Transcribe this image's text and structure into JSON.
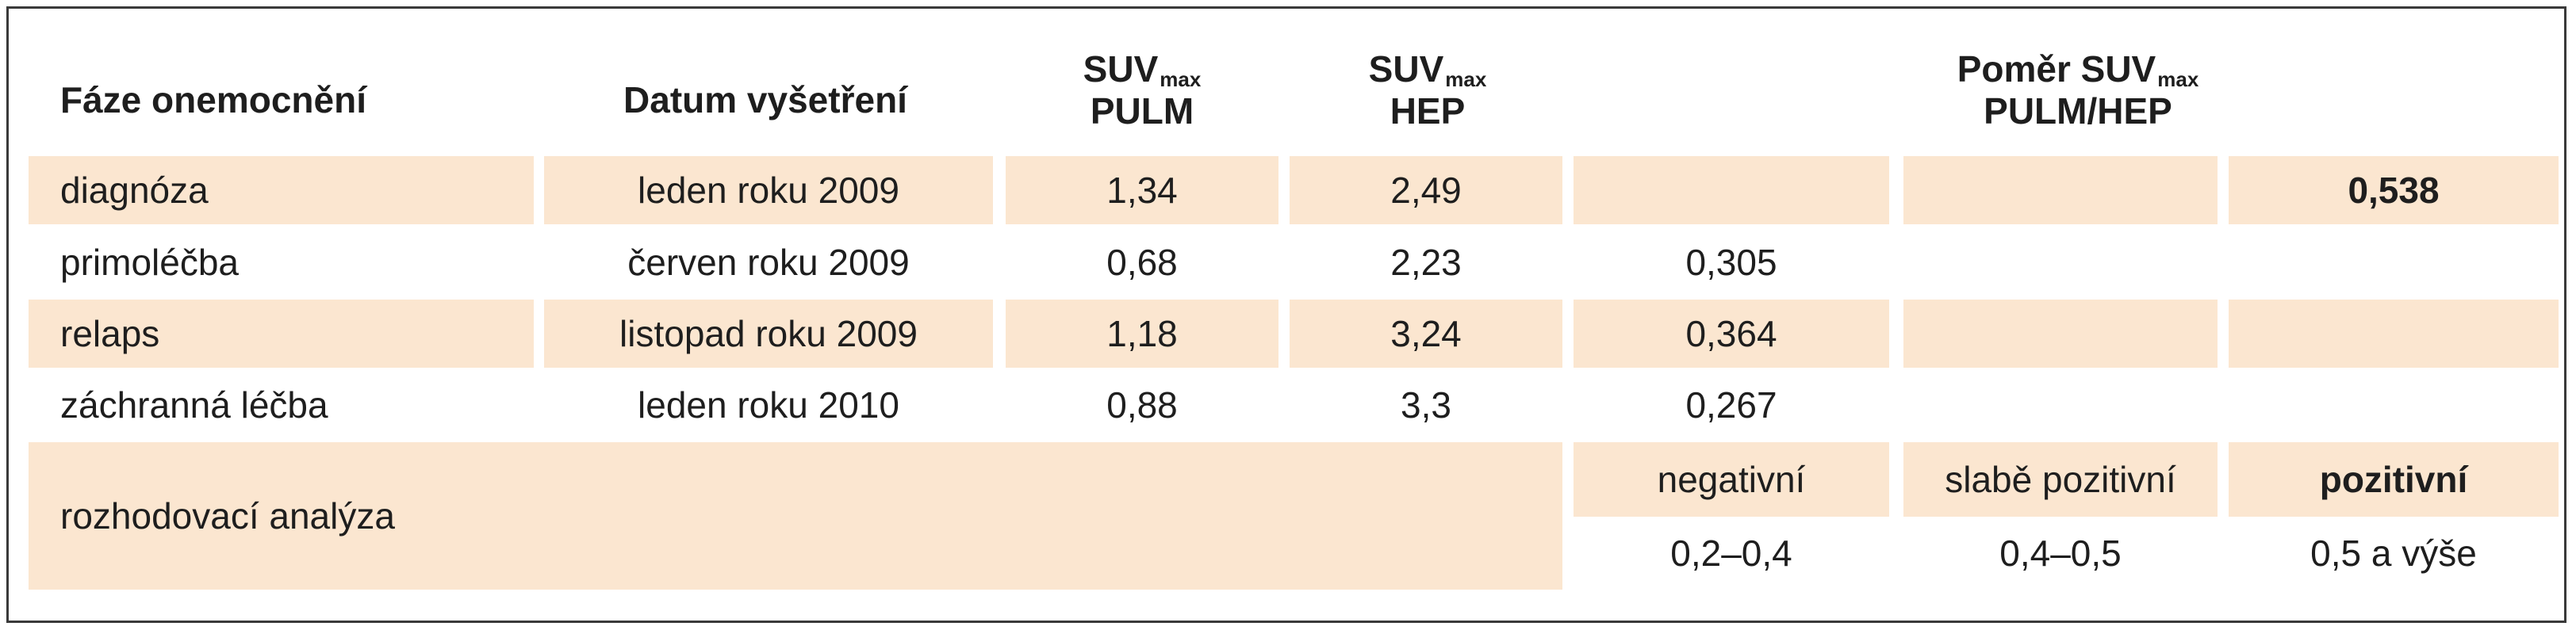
{
  "header": {
    "phase": "Fáze onemocnění",
    "date": "Datum vyšetření",
    "suv_pulm_main": "SUV",
    "suv_pulm_sub": "max",
    "suv_pulm_line2": "PULM",
    "suv_hep_main": "SUV",
    "suv_hep_sub": "max",
    "suv_hep_line2": "HEP",
    "ratio_main": "Poměr SUV",
    "ratio_sub": "max",
    "ratio_line2": "PULM/HEP"
  },
  "rows": [
    {
      "phase": "diagnóza",
      "date": "leden roku 2009",
      "pulm": "1,34",
      "hep": "2,49",
      "ratio_neg": "",
      "ratio_weak": "",
      "ratio_pos": "0,538"
    },
    {
      "phase": "primoléčba",
      "date": "červen roku 2009",
      "pulm": "0,68",
      "hep": "2,23",
      "ratio_neg": "0,305",
      "ratio_weak": "",
      "ratio_pos": ""
    },
    {
      "phase": "relaps",
      "date": "listopad roku 2009",
      "pulm": "1,18",
      "hep": "3,24",
      "ratio_neg": "0,364",
      "ratio_weak": "",
      "ratio_pos": ""
    },
    {
      "phase": "záchranná léčba",
      "date": "leden roku 2010",
      "pulm": "0,88",
      "hep": "3,3",
      "ratio_neg": "0,267",
      "ratio_weak": "",
      "ratio_pos": ""
    }
  ],
  "decision": {
    "label": "rozhodovací analýza",
    "negative_label": "negativní",
    "weak_label": "slabě pozitivní",
    "positive_label": "pozitivní",
    "negative_range": "0,2–0,4",
    "weak_range": "0,4–0,5",
    "positive_range": "0,5 a výše"
  },
  "colors": {
    "shade": "#fbe6d0",
    "border": "#3a3a3a",
    "text": "#1e1e1e"
  }
}
